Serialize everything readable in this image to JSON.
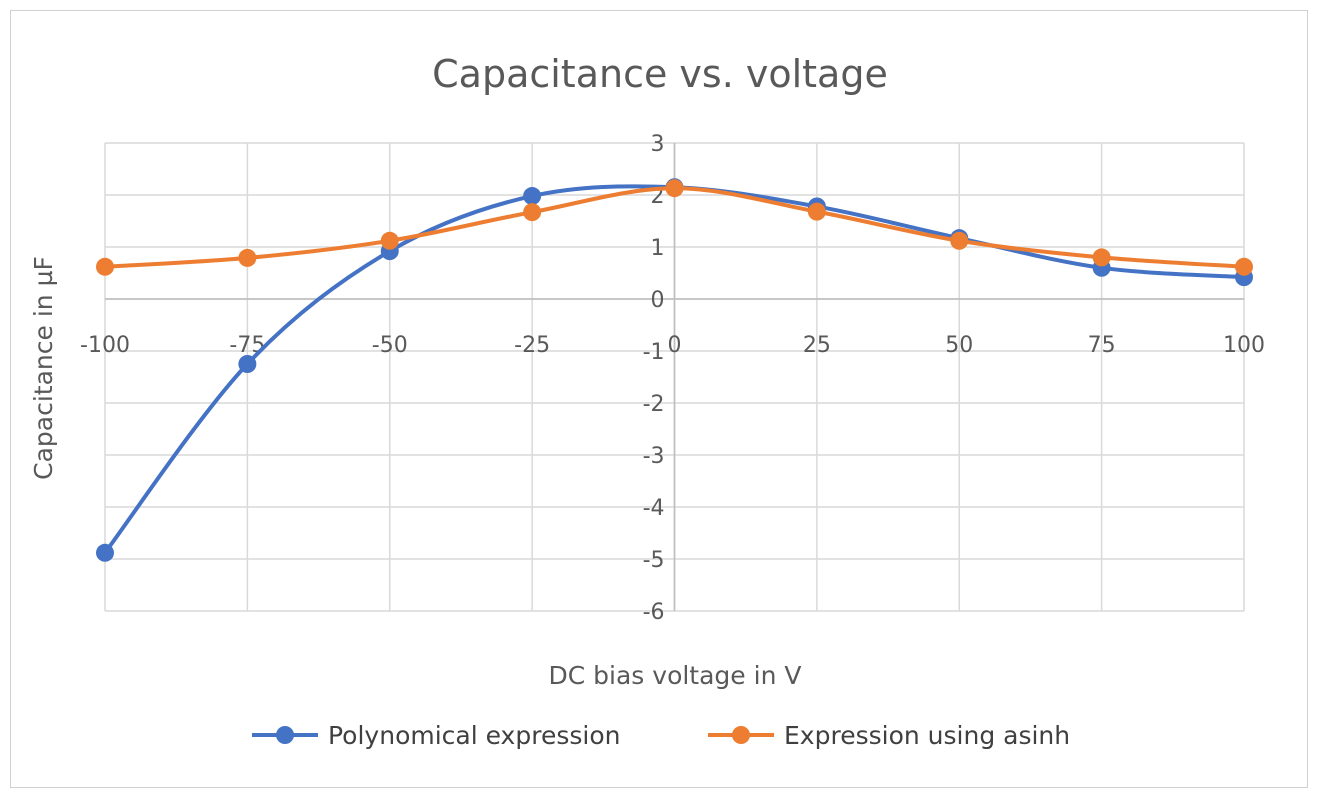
{
  "chart_data": {
    "type": "line",
    "title": "Capacitance vs. voltage",
    "xlabel": "DC bias voltage in V",
    "ylabel": "Capacitance in µF",
    "x": [
      -100,
      -75,
      -50,
      -25,
      0,
      25,
      50,
      75,
      100
    ],
    "x_ticks": [
      "-100",
      "-75",
      "-50",
      "-25",
      "0",
      "25",
      "50",
      "75",
      "100"
    ],
    "xlim": [
      -100,
      100
    ],
    "ylim": [
      -6,
      3
    ],
    "y_ticks": [
      "3",
      "2",
      "1",
      "0",
      "-1",
      "-2",
      "-3",
      "-4",
      "-5",
      "-6"
    ],
    "grid": true,
    "smooth": true,
    "legend_position": "bottom",
    "series": [
      {
        "name": "Polynomical expression",
        "color": "#4472C4",
        "values": [
          -4.88,
          -1.25,
          0.92,
          1.98,
          2.15,
          1.78,
          1.17,
          0.6,
          0.42
        ]
      },
      {
        "name": "Expression using asinh",
        "color": "#ED7D31",
        "values": [
          0.62,
          0.79,
          1.12,
          1.67,
          2.13,
          1.68,
          1.12,
          0.8,
          0.62
        ]
      }
    ]
  }
}
